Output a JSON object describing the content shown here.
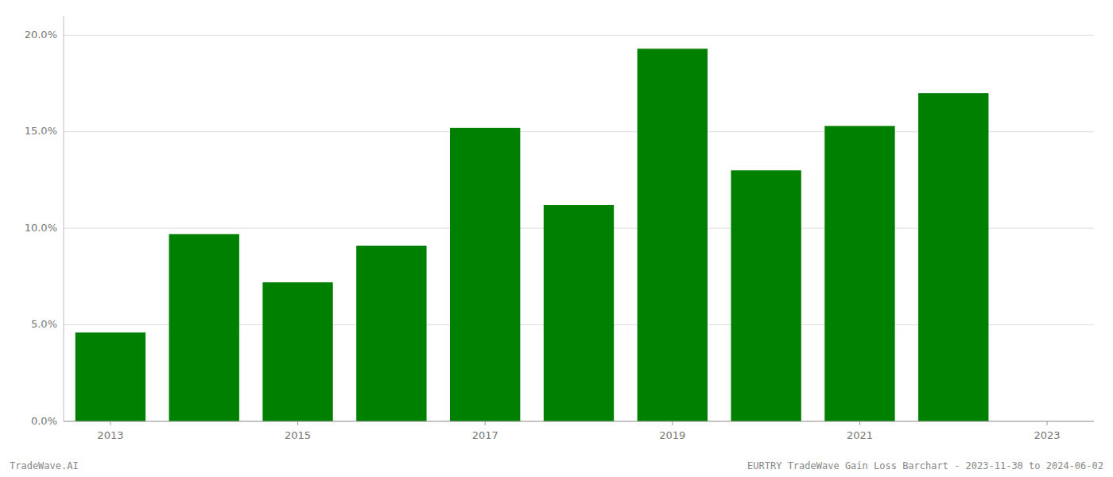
{
  "chart_data": {
    "type": "bar",
    "x": [
      2013,
      2014,
      2015,
      2016,
      2017,
      2018,
      2019,
      2020,
      2021,
      2022
    ],
    "values": [
      0.046,
      0.097,
      0.072,
      0.091,
      0.152,
      0.112,
      0.193,
      0.13,
      0.153,
      0.17
    ],
    "color": "#008000",
    "xlim": [
      2012.5,
      2023.5
    ],
    "xticks": [
      2013,
      2015,
      2017,
      2019,
      2021,
      2023
    ],
    "ylim": [
      0,
      0.21
    ],
    "yticks": [
      {
        "value": 0.0,
        "label": "0.0%"
      },
      {
        "value": 0.05,
        "label": "5.0%"
      },
      {
        "value": 0.1,
        "label": "10.0%"
      },
      {
        "value": 0.15,
        "label": "15.0%"
      },
      {
        "value": 0.2,
        "label": "20.0%"
      }
    ],
    "grid": true,
    "annotations": [
      "TradeWave.AI",
      "EURTRY TradeWave Gain Loss Barchart - 2023-11-30 to 2024-06-02"
    ]
  }
}
